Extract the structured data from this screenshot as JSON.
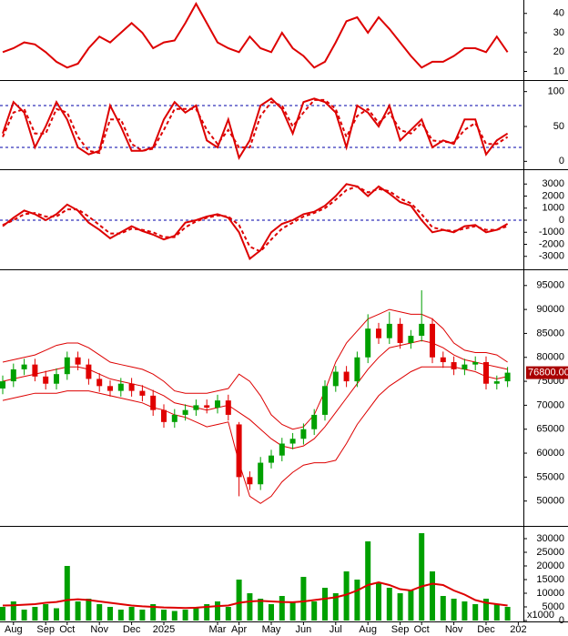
{
  "chart_data": [
    {
      "type": "line",
      "ylim": [
        6,
        46
      ],
      "yticks": [
        10,
        20,
        30,
        40
      ],
      "series": [
        {
          "color": "#dd0000",
          "values": [
            20,
            22,
            25,
            24,
            20,
            15,
            12,
            14,
            22,
            28,
            25,
            30,
            35,
            30,
            22,
            25,
            26,
            35,
            45,
            35,
            25,
            22,
            20,
            28,
            22,
            20,
            30,
            22,
            18,
            12,
            15,
            25,
            36,
            38,
            30,
            38,
            32,
            25,
            18,
            12,
            15,
            15,
            18,
            22,
            22,
            20,
            28,
            20
          ]
        }
      ]
    },
    {
      "type": "line",
      "ylim": [
        -10,
        110
      ],
      "yticks": [
        0,
        50,
        100
      ],
      "levels": [
        20,
        80
      ],
      "level_color": "#0000aa",
      "series": [
        {
          "color": "#dd0000",
          "values": [
            40,
            85,
            70,
            20,
            50,
            85,
            60,
            20,
            10,
            15,
            80,
            50,
            15,
            15,
            20,
            60,
            85,
            70,
            80,
            30,
            20,
            60,
            5,
            30,
            80,
            90,
            75,
            40,
            85,
            90,
            85,
            70,
            20,
            80,
            70,
            50,
            80,
            30,
            45,
            60,
            20,
            30,
            25,
            60,
            60,
            10,
            30,
            40
          ]
        },
        {
          "color": "#dd0000",
          "dash": true,
          "values": [
            35,
            70,
            75,
            40,
            40,
            75,
            70,
            35,
            15,
            12,
            60,
            60,
            25,
            15,
            18,
            45,
            75,
            75,
            75,
            45,
            25,
            45,
            20,
            20,
            65,
            85,
            80,
            50,
            70,
            88,
            88,
            75,
            35,
            65,
            75,
            55,
            70,
            45,
            40,
            55,
            30,
            28,
            27,
            45,
            55,
            25,
            25,
            35
          ]
        }
      ]
    },
    {
      "type": "line",
      "ylim": [
        -4000,
        4000
      ],
      "yticks": [
        -3000,
        -2000,
        -1000,
        0,
        1000,
        2000,
        3000
      ],
      "levels": [
        0
      ],
      "level_color": "#0000aa",
      "series": [
        {
          "color": "#dd0000",
          "values": [
            -500,
            200,
            800,
            500,
            0,
            500,
            1300,
            800,
            -200,
            -800,
            -1500,
            -1000,
            -500,
            -900,
            -1200,
            -1600,
            -1300,
            -200,
            0,
            300,
            500,
            200,
            -1000,
            -3200,
            -2500,
            -1000,
            -300,
            0,
            500,
            700,
            1200,
            2000,
            3000,
            2800,
            2000,
            2800,
            2200,
            1500,
            1200,
            0,
            -1000,
            -800,
            -1000,
            -500,
            -400,
            -1000,
            -800,
            -300
          ]
        },
        {
          "color": "#dd0000",
          "dash": true,
          "values": [
            -400,
            0,
            500,
            600,
            300,
            300,
            900,
            900,
            300,
            -400,
            -1100,
            -1100,
            -700,
            -800,
            -1000,
            -1400,
            -1400,
            -600,
            -100,
            200,
            400,
            300,
            -400,
            -2200,
            -2600,
            -1600,
            -700,
            -200,
            300,
            600,
            1000,
            1700,
            2500,
            2800,
            2300,
            2600,
            2400,
            1800,
            1400,
            500,
            -600,
            -800,
            -900,
            -700,
            -500,
            -800,
            -800,
            -500
          ]
        }
      ]
    },
    {
      "type": "candlestick",
      "ylim": [
        45000,
        98000
      ],
      "yticks": [
        50000,
        55000,
        60000,
        65000,
        70000,
        75000,
        80000,
        85000,
        90000,
        95000
      ],
      "up_color": "#00a000",
      "down_color": "#e00000",
      "last_price": {
        "value": 76800,
        "label": "76800.00"
      },
      "open": [
        73500,
        75000,
        77500,
        78500,
        76000,
        74500,
        76500,
        80000,
        78500,
        75500,
        74000,
        73000,
        74500,
        73000,
        72000,
        69000,
        66500,
        68000,
        69000,
        70000,
        69500,
        71000,
        66000,
        55000,
        53500,
        58000,
        59500,
        62000,
        63000,
        65000,
        68000,
        74000,
        77000,
        75000,
        80000,
        86000,
        84000,
        87000,
        83000,
        84500,
        87000,
        80000,
        79000,
        77500,
        78500,
        79000,
        74500,
        75000
      ],
      "high": [
        76200,
        78700,
        79700,
        79700,
        77200,
        77700,
        81200,
        81200,
        79700,
        76700,
        75200,
        75700,
        75700,
        74200,
        73200,
        70200,
        69200,
        70200,
        71200,
        71200,
        72200,
        72200,
        66500,
        56200,
        59200,
        60700,
        63200,
        64200,
        66200,
        69200,
        75200,
        78200,
        78200,
        81200,
        89000,
        87200,
        89500,
        88200,
        85700,
        94000,
        88200,
        81200,
        80200,
        79700,
        80200,
        80200,
        76200,
        78000
      ],
      "low": [
        72300,
        73800,
        76300,
        75000,
        73300,
        73300,
        75300,
        77300,
        74300,
        72800,
        71800,
        71800,
        71800,
        70800,
        67800,
        65300,
        65300,
        66800,
        67800,
        68300,
        68300,
        66800,
        51000,
        52300,
        52300,
        56800,
        58300,
        60800,
        61800,
        63800,
        66800,
        72800,
        73800,
        73800,
        78800,
        82800,
        82800,
        81800,
        81800,
        83300,
        78800,
        77800,
        76300,
        76300,
        77300,
        73300,
        73300,
        73800
      ],
      "close": [
        75000,
        77500,
        78500,
        76000,
        74500,
        76500,
        80000,
        78500,
        75500,
        74000,
        73000,
        74500,
        73000,
        72000,
        69000,
        66500,
        68000,
        69000,
        70000,
        69500,
        71000,
        68000,
        55000,
        53500,
        58000,
        59500,
        62000,
        63000,
        65000,
        68000,
        74000,
        77000,
        75000,
        80000,
        86000,
        84000,
        87000,
        83000,
        84500,
        87000,
        80000,
        79000,
        77500,
        78500,
        79000,
        74500,
        75000,
        76800
      ],
      "series": [
        {
          "color": "#dd0000",
          "values": [
            79000,
            79500,
            80000,
            80500,
            81500,
            82500,
            83000,
            83000,
            82000,
            80500,
            79000,
            78500,
            78000,
            77500,
            76500,
            75000,
            73000,
            72500,
            72500,
            72500,
            73000,
            73500,
            76500,
            75000,
            72000,
            68000,
            66000,
            65000,
            65500,
            68000,
            73000,
            79000,
            83000,
            85500,
            88000,
            89000,
            90000,
            89500,
            89000,
            89000,
            88000,
            86000,
            83000,
            81500,
            81000,
            81000,
            80500,
            79000
          ]
        },
        {
          "color": "#dd0000",
          "values": [
            75000,
            75500,
            76000,
            76500,
            77000,
            77500,
            78000,
            78000,
            77500,
            76500,
            75500,
            75000,
            74500,
            74000,
            73000,
            72000,
            70500,
            70000,
            69500,
            69000,
            69500,
            70000,
            68500,
            67000,
            65000,
            63000,
            61500,
            61000,
            61500,
            63000,
            65500,
            68500,
            71500,
            74500,
            77500,
            80000,
            82000,
            82500,
            83000,
            83500,
            83000,
            82000,
            80500,
            79500,
            79000,
            78500,
            78000,
            77500
          ]
        },
        {
          "color": "#dd0000",
          "values": [
            71000,
            71500,
            72000,
            72500,
            72500,
            72500,
            73000,
            73000,
            73000,
            72500,
            72000,
            71500,
            71000,
            70500,
            69500,
            69000,
            68000,
            67500,
            66500,
            65500,
            66000,
            66500,
            58000,
            51000,
            49500,
            51000,
            54000,
            56000,
            57500,
            58000,
            58000,
            58500,
            62000,
            66000,
            69000,
            72000,
            74000,
            75500,
            77000,
            78000,
            78000,
            78000,
            78000,
            77500,
            77000,
            76000,
            75500,
            76000
          ]
        }
      ]
    },
    {
      "type": "bar",
      "ylim": [
        0,
        34000
      ],
      "yticks": [
        0,
        5000,
        10000,
        15000,
        20000,
        25000,
        30000
      ],
      "color": "#00a000",
      "unit_label": "x1000",
      "values": [
        5000,
        7000,
        4000,
        5000,
        6000,
        4500,
        20000,
        7000,
        8000,
        6000,
        5000,
        4000,
        5000,
        4000,
        6000,
        4000,
        3500,
        4000,
        5000,
        6000,
        7000,
        5000,
        15000,
        10000,
        8000,
        6000,
        9000,
        7000,
        16000,
        7000,
        12000,
        10000,
        18000,
        15000,
        29000,
        14000,
        12000,
        10000,
        11000,
        32000,
        18000,
        9000,
        8000,
        7000,
        6000,
        8000,
        6000,
        5000
      ],
      "series": [
        {
          "color": "#dd0000",
          "values": [
            5500,
            5600,
            5800,
            6000,
            6500,
            6800,
            7500,
            7800,
            7500,
            7000,
            6500,
            6000,
            5500,
            5200,
            5000,
            4800,
            4700,
            4600,
            4700,
            5000,
            5300,
            5500,
            6500,
            7000,
            7200,
            7000,
            6800,
            6700,
            7000,
            7500,
            8000,
            8500,
            9500,
            11000,
            13000,
            14000,
            13000,
            11500,
            11000,
            12500,
            13500,
            13000,
            11000,
            9500,
            7500,
            6500,
            6000,
            5500
          ]
        }
      ],
      "xticks": [
        {
          "value": 1,
          "label": "Aug"
        },
        {
          "value": 4,
          "label": "Sep"
        },
        {
          "value": 6,
          "label": "Oct"
        },
        {
          "value": 9,
          "label": "Nov"
        },
        {
          "value": 12,
          "label": "Dec"
        },
        {
          "value": 15,
          "label": "2025"
        },
        {
          "value": 20,
          "label": "Mar"
        },
        {
          "value": 22,
          "label": "Apr"
        },
        {
          "value": 25,
          "label": "May"
        },
        {
          "value": 28,
          "label": "Jun"
        },
        {
          "value": 31,
          "label": "Jul"
        },
        {
          "value": 34,
          "label": "Aug"
        },
        {
          "value": 37,
          "label": "Sep"
        },
        {
          "value": 39,
          "label": "Oct"
        },
        {
          "value": 42,
          "label": "Nov"
        },
        {
          "value": 45,
          "label": "Dec"
        },
        {
          "value": 48,
          "label": "202"
        }
      ]
    }
  ]
}
